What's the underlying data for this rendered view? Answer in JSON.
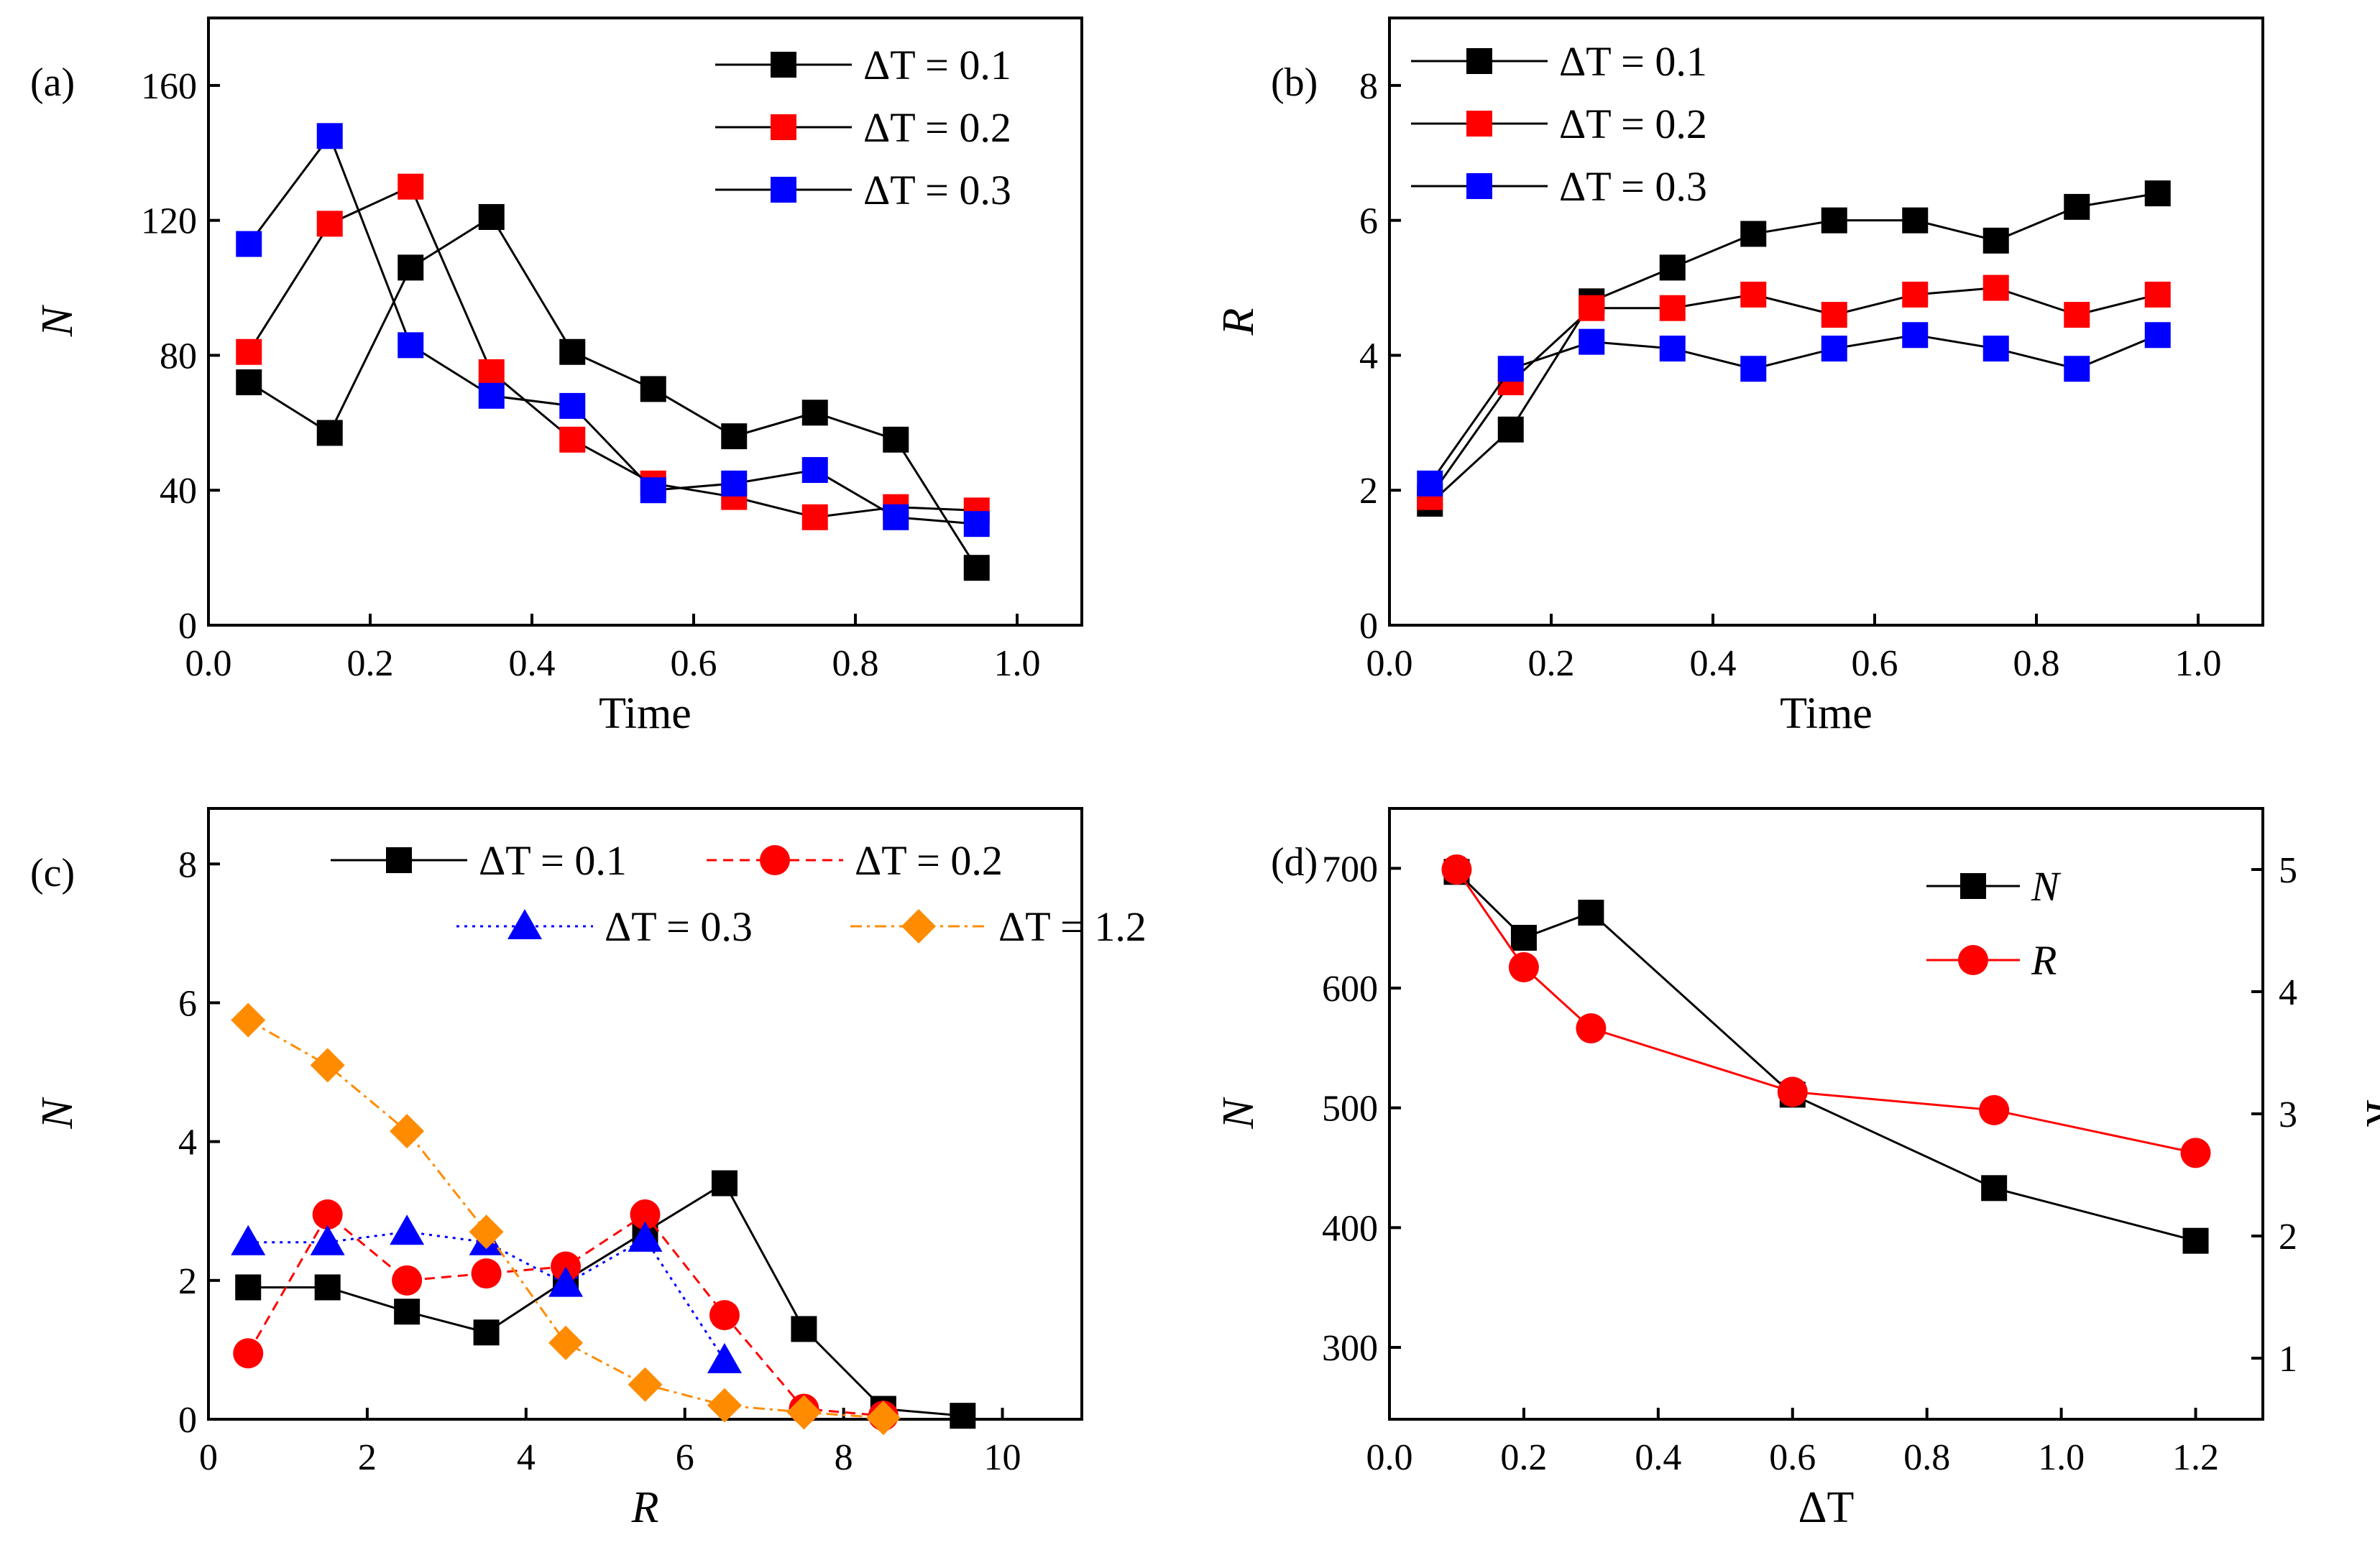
{
  "chart_data": [
    {
      "id": "a",
      "type": "line",
      "panel_label": "(a)",
      "xlabel": "Time",
      "ylabel": "N",
      "xlim": [
        0,
        1.08
      ],
      "ylim": [
        0,
        180
      ],
      "xticks": [
        0,
        0.2,
        0.4,
        0.6,
        0.8,
        1.0
      ],
      "xtick_labels": [
        "0.0",
        "0.2",
        "0.4",
        "0.6",
        "0.8",
        "1.0"
      ],
      "yticks": [
        0,
        40,
        80,
        120,
        160
      ],
      "ytick_labels": [
        "0",
        "40",
        "80",
        "120",
        "160"
      ],
      "legend_position": "top-right",
      "series": [
        {
          "name": "ΔT = 0.1",
          "color": "#000000",
          "marker": "square",
          "line": "solid",
          "x": [
            0.05,
            0.15,
            0.25,
            0.35,
            0.45,
            0.55,
            0.65,
            0.75,
            0.85,
            0.95
          ],
          "values": [
            72,
            57,
            106,
            121,
            81,
            70,
            56,
            63,
            55,
            17
          ]
        },
        {
          "name": "ΔT = 0.2",
          "color": "#ff0000",
          "marker": "square",
          "line": "solid",
          "line_color": "#000000",
          "x": [
            0.05,
            0.15,
            0.25,
            0.35,
            0.45,
            0.55,
            0.65,
            0.75,
            0.85,
            0.95
          ],
          "values": [
            81,
            119,
            130,
            75,
            55,
            42,
            38,
            32,
            35,
            34
          ]
        },
        {
          "name": "ΔT = 0.3",
          "color": "#0000ff",
          "marker": "square",
          "line": "solid",
          "line_color": "#000000",
          "x": [
            0.05,
            0.15,
            0.25,
            0.35,
            0.45,
            0.55,
            0.65,
            0.75,
            0.85,
            0.95
          ],
          "values": [
            113,
            145,
            83,
            68,
            65,
            40,
            42,
            46,
            32,
            30
          ]
        }
      ]
    },
    {
      "id": "b",
      "type": "line",
      "panel_label": "(b)",
      "xlabel": "Time",
      "ylabel": "R",
      "xlim": [
        0,
        1.08
      ],
      "ylim": [
        0,
        9
      ],
      "xticks": [
        0,
        0.2,
        0.4,
        0.6,
        0.8,
        1.0
      ],
      "xtick_labels": [
        "0.0",
        "0.2",
        "0.4",
        "0.6",
        "0.8",
        "1.0"
      ],
      "yticks": [
        0,
        2,
        4,
        6,
        8
      ],
      "ytick_labels": [
        "0",
        "2",
        "4",
        "6",
        "8"
      ],
      "legend_position": "top-left",
      "series": [
        {
          "name": "ΔT = 0.1",
          "color": "#000000",
          "marker": "square",
          "line": "solid",
          "x": [
            0.05,
            0.15,
            0.25,
            0.35,
            0.45,
            0.55,
            0.65,
            0.75,
            0.85,
            0.95
          ],
          "values": [
            1.8,
            2.9,
            4.8,
            5.3,
            5.8,
            6.0,
            6.0,
            5.7,
            6.2,
            6.4
          ]
        },
        {
          "name": "ΔT = 0.2",
          "color": "#ff0000",
          "marker": "square",
          "line": "solid",
          "line_color": "#000000",
          "x": [
            0.05,
            0.15,
            0.25,
            0.35,
            0.45,
            0.55,
            0.65,
            0.75,
            0.85,
            0.95
          ],
          "values": [
            1.9,
            3.6,
            4.7,
            4.7,
            4.9,
            4.6,
            4.9,
            5.0,
            4.6,
            4.9
          ]
        },
        {
          "name": "ΔT = 0.3",
          "color": "#0000ff",
          "marker": "square",
          "line": "solid",
          "line_color": "#000000",
          "x": [
            0.05,
            0.15,
            0.25,
            0.35,
            0.45,
            0.55,
            0.65,
            0.75,
            0.85,
            0.95
          ],
          "values": [
            2.1,
            3.8,
            4.2,
            4.1,
            3.8,
            4.1,
            4.3,
            4.1,
            3.8,
            4.3
          ]
        }
      ]
    },
    {
      "id": "c",
      "type": "line",
      "panel_label": "(c)",
      "xlabel": "R",
      "ylabel": "N",
      "xlim": [
        0,
        11
      ],
      "ylim": [
        0,
        8.8
      ],
      "xticks": [
        0,
        2,
        4,
        6,
        8,
        10
      ],
      "xtick_labels": [
        "0",
        "2",
        "4",
        "6",
        "8",
        "10"
      ],
      "yticks": [
        0,
        2,
        4,
        6,
        8
      ],
      "ytick_labels": [
        "0",
        "2",
        "4",
        "6",
        "8"
      ],
      "legend_position": "top-right",
      "series": [
        {
          "name": "ΔT = 0.1",
          "color": "#000000",
          "marker": "square",
          "line": "solid",
          "x": [
            0.5,
            1.5,
            2.5,
            3.5,
            4.5,
            5.5,
            6.5,
            7.5,
            8.5,
            9.5
          ],
          "values": [
            1.9,
            1.9,
            1.55,
            1.25,
            2.0,
            2.7,
            3.4,
            1.3,
            0.15,
            0.05
          ]
        },
        {
          "name": "ΔT = 0.2",
          "color": "#ff0000",
          "marker": "circle",
          "line": "dashed",
          "x": [
            0.5,
            1.5,
            2.5,
            3.5,
            4.5,
            5.5,
            6.5,
            7.5,
            8.5
          ],
          "values": [
            0.95,
            2.95,
            2.0,
            2.1,
            2.2,
            2.95,
            1.5,
            0.15,
            0.05
          ]
        },
        {
          "name": "ΔT = 0.3",
          "color": "#0000ff",
          "marker": "triangle",
          "line": "dotted",
          "x": [
            0.5,
            1.5,
            2.5,
            3.5,
            4.5,
            5.5,
            6.5
          ],
          "values": [
            2.55,
            2.55,
            2.7,
            2.55,
            1.95,
            2.6,
            0.85
          ]
        },
        {
          "name": "ΔT = 1.2",
          "color": "#ff8c00",
          "marker": "diamond",
          "line": "dashdot",
          "x": [
            0.5,
            1.5,
            2.5,
            3.5,
            4.5,
            5.5,
            6.5,
            7.5,
            8.5
          ],
          "values": [
            5.75,
            5.1,
            4.15,
            2.7,
            1.1,
            0.5,
            0.2,
            0.1,
            0.02
          ]
        }
      ]
    },
    {
      "id": "d",
      "type": "line",
      "panel_label": "(d)",
      "xlabel": "ΔT",
      "ylabel": "N",
      "ylabel_right": "R",
      "xlim": [
        0,
        1.3
      ],
      "ylim": [
        240,
        750
      ],
      "ylim_right": [
        0.5,
        5.5
      ],
      "xticks": [
        0,
        0.2,
        0.4,
        0.6,
        0.8,
        1.0,
        1.2
      ],
      "xtick_labels": [
        "0.0",
        "0.2",
        "0.4",
        "0.6",
        "0.8",
        "1.0",
        "1.2"
      ],
      "yticks": [
        300,
        400,
        500,
        600,
        700
      ],
      "ytick_labels": [
        "300",
        "400",
        "500",
        "600",
        "700"
      ],
      "yticks_right": [
        1,
        2,
        3,
        4,
        5
      ],
      "ytick_labels_right": [
        "1",
        "2",
        "3",
        "4",
        "5"
      ],
      "legend_position": "top-right",
      "series": [
        {
          "name": "N",
          "color": "#000000",
          "marker": "square",
          "line": "solid",
          "axis": "left",
          "x": [
            0.1,
            0.2,
            0.3,
            0.6,
            0.9,
            1.2
          ],
          "values": [
            697,
            642,
            663,
            511,
            433,
            389
          ]
        },
        {
          "name": "R",
          "color": "#ff0000",
          "marker": "circle",
          "line": "solid",
          "axis": "right",
          "x": [
            0.1,
            0.2,
            0.3,
            0.6,
            0.9,
            1.2
          ],
          "values": [
            5.0,
            4.2,
            3.7,
            3.18,
            3.03,
            2.68
          ]
        }
      ]
    }
  ]
}
